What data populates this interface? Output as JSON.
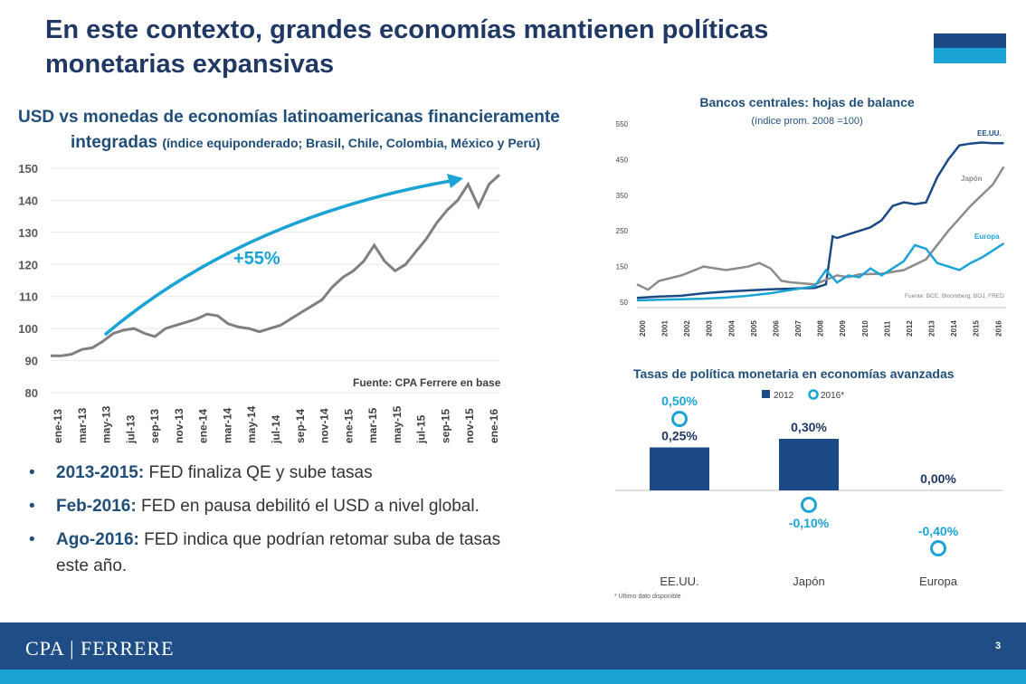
{
  "slide": {
    "title": "En este contexto, grandes economías mantienen políticas monetarias expansivas",
    "page_number": "3",
    "logo": "CPA | FERRERE"
  },
  "bullets": [
    {
      "bold": "2013-2015:",
      "text": " FED finaliza QE y sube tasas"
    },
    {
      "bold": "Feb-2016:",
      "text": " FED en pausa debilitó el USD a nivel global."
    },
    {
      "bold": "Ago-2016:",
      "text": " FED indica que podrían retomar suba de tasas este año."
    }
  ],
  "chart_data": [
    {
      "type": "line",
      "title": "USD vs monedas de economías latinoamericanas financieramente",
      "title_line2": "integradas",
      "subtitle": "(índice equiponderado; Brasil, Chile, Colombia, México y Perú)",
      "source": "Fuente: CPA Ferrere en base",
      "annotation": "+55%",
      "ylim": [
        80,
        150
      ],
      "yticks": [
        "80",
        "90",
        "100",
        "110",
        "120",
        "130",
        "140",
        "150"
      ],
      "xticks": [
        "ene-13",
        "mar-13",
        "may-13",
        "jul-13",
        "sep-13",
        "nov-13",
        "ene-14",
        "mar-14",
        "may-14",
        "jul-14",
        "sep-14",
        "nov-14",
        "ene-15",
        "mar-15",
        "may-15",
        "jul-15",
        "sep-15",
        "nov-15",
        "ene-16"
      ],
      "series": [
        {
          "color": "#7f7f7f",
          "x": [
            0,
            1,
            2,
            3,
            4,
            5,
            6,
            7,
            8,
            9,
            10,
            11,
            12,
            13,
            14,
            15,
            16,
            17,
            18,
            19,
            20,
            21,
            22,
            23,
            24,
            25,
            26,
            27,
            28,
            29,
            30,
            31,
            32,
            33,
            34,
            35,
            36,
            37,
            38,
            39,
            40,
            41,
            42,
            43
          ],
          "values": [
            91.5,
            91.5,
            92,
            93.5,
            94,
            96,
            98.5,
            99.5,
            100,
            98.5,
            97.5,
            100,
            101,
            102,
            103,
            104.5,
            104,
            101.5,
            100.5,
            100,
            99,
            100,
            101,
            103,
            105,
            107,
            109,
            113,
            116,
            118,
            121,
            126,
            121,
            118,
            120,
            124,
            128,
            133,
            137,
            140,
            145,
            138,
            145,
            148
          ]
        }
      ]
    },
    {
      "type": "line",
      "title": "Bancos centrales: hojas de balance",
      "subtitle": "(índice prom. 2008 =100)",
      "source": "Fuente: BCE, Bloomberg, BOJ, FRED",
      "ylim": [
        50,
        550
      ],
      "yticks": [
        "50",
        "150",
        "250",
        "350",
        "450",
        "550"
      ],
      "xticks": [
        "2000",
        "2001",
        "2002",
        "2003",
        "2004",
        "2005",
        "2006",
        "2007",
        "2008",
        "2009",
        "2010",
        "2011",
        "2012",
        "2013",
        "2014",
        "2015",
        "2016"
      ],
      "series": [
        {
          "name": "EE.UU.",
          "color": "#1b4a86",
          "x": [
            2000,
            2001,
            2002,
            2003,
            2004,
            2005,
            2006,
            2007,
            2008,
            2008.5,
            2008.8,
            2009,
            2009.5,
            2010,
            2010.5,
            2011,
            2011.5,
            2012,
            2012.5,
            2013,
            2013.5,
            2014,
            2014.5,
            2015,
            2015.5,
            2016,
            2016.5
          ],
          "values": [
            62,
            66,
            68,
            75,
            80,
            83,
            86,
            88,
            90,
            100,
            235,
            230,
            240,
            250,
            260,
            280,
            320,
            330,
            325,
            330,
            400,
            450,
            490,
            495,
            498,
            496,
            496
          ]
        },
        {
          "name": "Japón",
          "color": "#8c8c8c",
          "x": [
            2000,
            2000.5,
            2001,
            2002,
            2003,
            2004,
            2004.5,
            2005,
            2005.5,
            2006,
            2006.5,
            2007,
            2008,
            2009,
            2009.5,
            2010,
            2011,
            2012,
            2013,
            2014,
            2015,
            2016,
            2016.5
          ],
          "values": [
            100,
            85,
            110,
            125,
            150,
            140,
            145,
            150,
            160,
            145,
            110,
            105,
            100,
            125,
            120,
            128,
            130,
            140,
            170,
            250,
            320,
            380,
            430
          ]
        },
        {
          "name": "Europa",
          "color": "#1ca3d6",
          "x": [
            2000,
            2001,
            2002,
            2003,
            2004,
            2005,
            2006,
            2007,
            2008,
            2008.5,
            2009,
            2009.5,
            2010,
            2010.5,
            2011,
            2011.5,
            2012,
            2012.5,
            2013,
            2013.5,
            2014,
            2014.5,
            2015,
            2015.5,
            2016,
            2016.5
          ],
          "values": [
            55,
            57,
            58,
            60,
            63,
            68,
            75,
            85,
            95,
            140,
            105,
            125,
            120,
            145,
            125,
            145,
            165,
            210,
            200,
            160,
            150,
            140,
            160,
            175,
            195,
            215
          ]
        }
      ]
    },
    {
      "type": "bar",
      "title": "Tasas de política monetaria en economías avanzadas",
      "legend": [
        "2012",
        "2016*"
      ],
      "footnote": "* Último dato disponible",
      "categories": [
        "EE.UU.",
        "Japón",
        "Europa"
      ],
      "series": [
        {
          "name": "2012",
          "color": "#1b4a86",
          "values": [
            0.25,
            0.3,
            0.0
          ],
          "labels": [
            "0,25%",
            "0,30%",
            "0,00%"
          ]
        },
        {
          "name": "2016*",
          "color": "#1ca3d6",
          "values": [
            0.5,
            -0.1,
            -0.4
          ],
          "labels": [
            "0,50%",
            "-0,10%",
            "-0,40%"
          ]
        }
      ]
    }
  ]
}
